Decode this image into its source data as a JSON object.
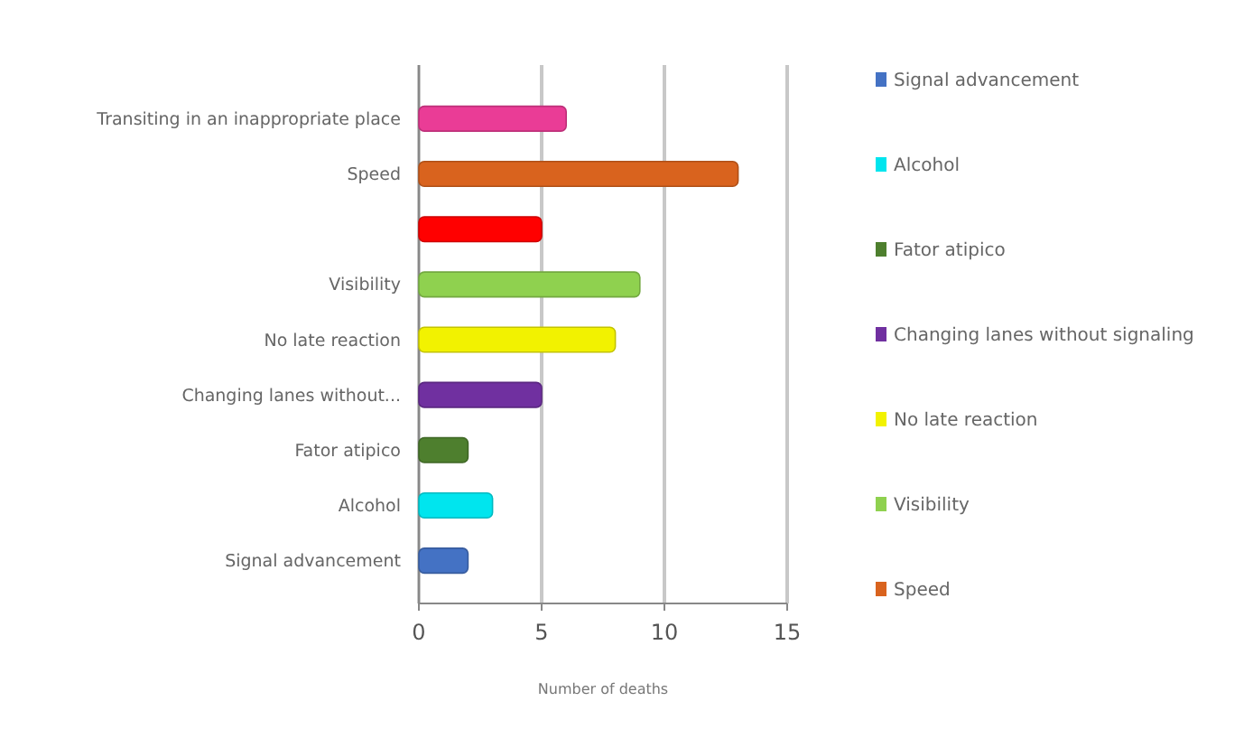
{
  "chart_data": {
    "type": "bar",
    "orientation": "horizontal",
    "xlabel": "Number of deaths",
    "categories": [
      "Transiting in an inappropriate place",
      "Speed",
      null,
      "Visibility",
      "No late reaction",
      "Changing lanes without...",
      "Fator atipico",
      "Alcohol",
      "Signal advancement"
    ],
    "series": [
      {
        "name": "Signal advancement",
        "color": "#4472c4",
        "values": [
          null,
          null,
          null,
          null,
          null,
          null,
          null,
          null,
          2
        ]
      },
      {
        "name": "Alcohol",
        "color": "#00e5ee",
        "values": [
          null,
          null,
          null,
          null,
          null,
          null,
          null,
          3,
          null
        ]
      },
      {
        "name": "Fator atipico",
        "color": "#4e7f2e",
        "values": [
          null,
          null,
          null,
          null,
          null,
          null,
          2,
          null,
          null
        ]
      },
      {
        "name": "Changing lanes without signaling",
        "color": "#7030a0",
        "values": [
          null,
          null,
          null,
          null,
          null,
          5,
          null,
          null,
          null
        ]
      },
      {
        "name": "No late reaction",
        "color": "#f2f200",
        "values": [
          null,
          null,
          null,
          null,
          8,
          null,
          null,
          null,
          null
        ]
      },
      {
        "name": "Visibility",
        "color": "#8fd14f",
        "values": [
          null,
          null,
          null,
          9,
          null,
          null,
          null,
          null,
          null
        ]
      },
      {
        "color": "#ff0000",
        "values": [
          null,
          null,
          5,
          null,
          null,
          null,
          null,
          null,
          null
        ]
      },
      {
        "name": "Speed",
        "color": "#d9631e",
        "values": [
          null,
          13,
          null,
          null,
          null,
          null,
          null,
          null,
          null
        ]
      },
      {
        "color": "#ea3c96",
        "values": [
          6,
          null,
          null,
          null,
          null,
          null,
          null,
          null,
          null
        ]
      }
    ],
    "xlim": [
      0,
      15
    ],
    "xticks": [
      0,
      5,
      10,
      15
    ],
    "grid": "x",
    "legend": "right"
  }
}
